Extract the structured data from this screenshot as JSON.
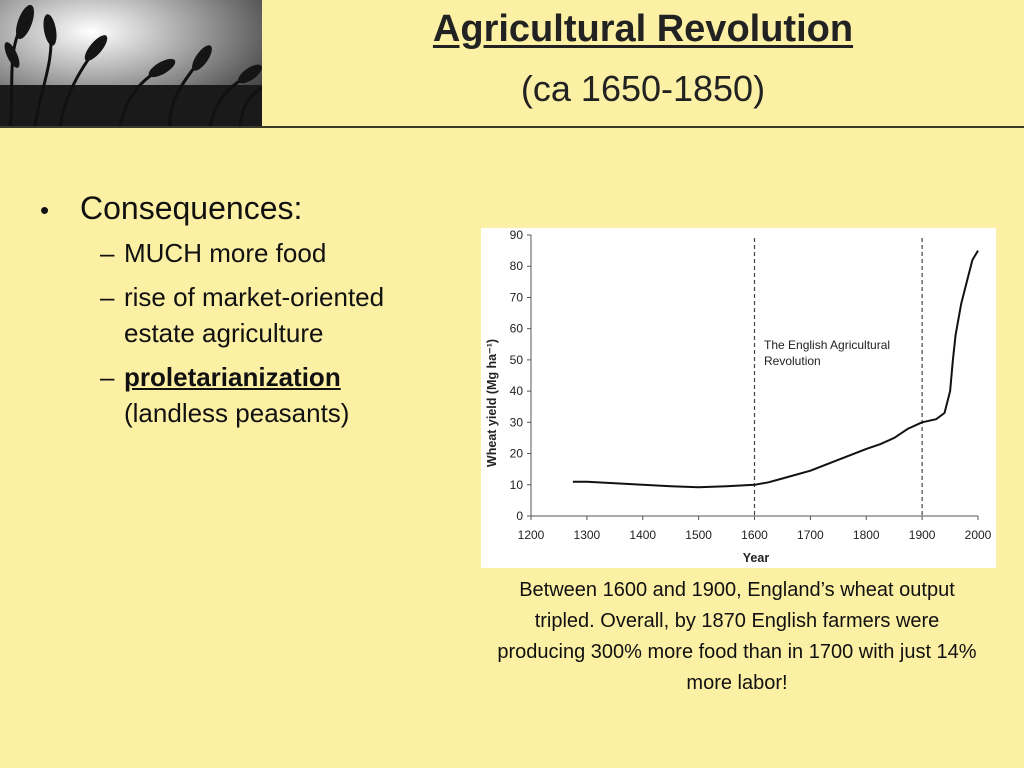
{
  "header": {
    "title": "Agricultural Revolution",
    "subtitle": "(ca 1650-1850)"
  },
  "content": {
    "bullet": "Consequences:",
    "subitems": [
      {
        "text": "MUCH more food"
      },
      {
        "text": "rise of market-oriented estate agriculture"
      },
      {
        "emphasis": "proletarianization",
        "text": "(landless peasants)"
      }
    ]
  },
  "chart_data": {
    "type": "line",
    "xlabel": "Year",
    "ylabel": "Wheat yield (Mg ha⁻¹)",
    "xlim": [
      1200,
      2000
    ],
    "ylim": [
      0,
      90
    ],
    "xticks": [
      1200,
      1300,
      1400,
      1500,
      1600,
      1700,
      1800,
      1900,
      2000
    ],
    "yticks": [
      0,
      10,
      20,
      30,
      40,
      50,
      60,
      70,
      80,
      90
    ],
    "grid": false,
    "annotation": "The English Agricultural Revolution",
    "reference_lines": [
      1600,
      1900
    ],
    "series": [
      {
        "x": [
          1275,
          1300,
          1350,
          1400,
          1450,
          1500,
          1550,
          1600,
          1625,
          1650,
          1700,
          1750,
          1800,
          1825,
          1850,
          1875,
          1900,
          1925,
          1940,
          1950,
          1955,
          1960,
          1970,
          1980,
          1990,
          2000
        ],
        "y": [
          11,
          11,
          10.5,
          10,
          9.5,
          9.2,
          9.5,
          10,
          10.8,
          12,
          14.5,
          18,
          21.5,
          23,
          25,
          28,
          30,
          31,
          33,
          40,
          50,
          58,
          68,
          75,
          82,
          85
        ]
      }
    ]
  },
  "caption": "Between 1600 and 1900, England’s wheat output tripled.  Overall, by 1870 English farmers were producing 300% more food than in 1700 with just 14% more labor!"
}
